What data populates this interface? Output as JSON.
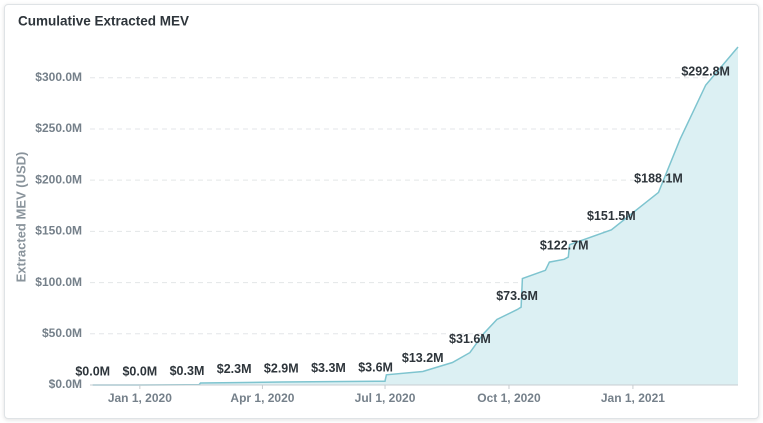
{
  "chart_data": {
    "type": "area",
    "title": "Cumulative Extracted MEV",
    "y_label": "Extracted MEV (USD)",
    "x": [
      "2019-11-27",
      "2020-01-01",
      "2020-02-05",
      "2020-02-14",
      "2020-02-15",
      "2020-03-11",
      "2020-04-15",
      "2020-05-20",
      "2020-06-24",
      "2020-07-01",
      "2020-07-02",
      "2020-07-29",
      "2020-08-20",
      "2020-09-02",
      "2020-09-12",
      "2020-09-22",
      "2020-10-07",
      "2020-10-10",
      "2020-10-11",
      "2020-10-28",
      "2020-10-31",
      "2020-11-11",
      "2020-11-14",
      "2020-11-15",
      "2020-12-16",
      "2021-01-20",
      "2021-02-05",
      "2021-02-24",
      "2021-03-20"
    ],
    "series": [
      {
        "name": "Cumulative Extracted MEV",
        "color": "#7ec4cf",
        "fill": "#dcf0f3",
        "values": [
          0,
          0,
          0.3,
          0.4,
          2.0,
          2.3,
          2.9,
          3.3,
          3.6,
          3.7,
          10.0,
          13.2,
          22,
          31.6,
          50,
          64,
          73.6,
          76,
          104,
          112,
          120,
          122.7,
          125,
          137,
          151.5,
          188.1,
          240,
          292.8,
          330
        ],
        "value_labels": [
          "$0.0M",
          "$0.0M",
          "$0.3M",
          null,
          null,
          "$2.3M",
          "$2.9M",
          "$3.3M",
          "$3.6M",
          null,
          null,
          "$13.2M",
          null,
          "$31.6M",
          null,
          null,
          "$73.6M",
          null,
          null,
          null,
          null,
          "$122.7M",
          null,
          null,
          "$151.5M",
          "$188.1M",
          null,
          "$292.8M",
          null
        ]
      }
    ],
    "xlim": [
      "2019-11-25",
      "2021-03-20"
    ],
    "xticks": [
      {
        "value": "2020-01-01",
        "label": "Jan 1, 2020"
      },
      {
        "value": "2020-04-01",
        "label": "Apr 1, 2020"
      },
      {
        "value": "2020-07-01",
        "label": "Jul 1, 2020"
      },
      {
        "value": "2020-10-01",
        "label": "Oct 1, 2020"
      },
      {
        "value": "2021-01-01",
        "label": "Jan 1, 2021"
      }
    ],
    "ylim": [
      0,
      332
    ],
    "yticks": [
      {
        "value": 0,
        "label": "$0.0M"
      },
      {
        "value": 50,
        "label": "$50.0M"
      },
      {
        "value": 100,
        "label": "$100.0M"
      },
      {
        "value": 150,
        "label": "$150.0M"
      },
      {
        "value": 200,
        "label": "$200.0M"
      },
      {
        "value": 250,
        "label": "$250.0M"
      },
      {
        "value": 300,
        "label": "$300.0M"
      }
    ],
    "grid": true
  }
}
